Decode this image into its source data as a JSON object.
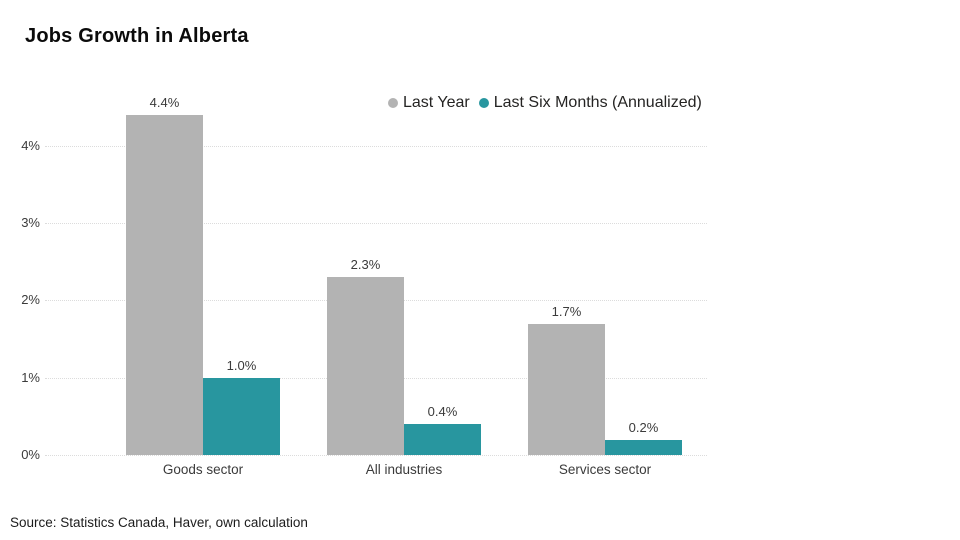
{
  "title": "Jobs Growth in Alberta",
  "source": "Source: Statistics Canada, Haver, own calculation",
  "colors": {
    "gray": "#b3b3b3",
    "teal": "#28969f",
    "grid": "#dcdcdc",
    "axis_text": "#3b3b3b",
    "legend_text": "#252423",
    "title_text": "#0b0b0b",
    "background": "#ffffff"
  },
  "chart_data": {
    "type": "bar",
    "title": "Jobs Growth in Alberta",
    "categories": [
      "Goods sector",
      "All industries",
      "Services sector"
    ],
    "series": [
      {
        "name": "Last Year",
        "color_key": "gray",
        "values": [
          4.4,
          2.3,
          1.7
        ],
        "labels": [
          "4.4%",
          "2.3%",
          "1.7%"
        ]
      },
      {
        "name": "Last Six Months (Annualized)",
        "color_key": "teal",
        "values": [
          1.0,
          0.4,
          0.2
        ],
        "labels": [
          "1.0%",
          "0.4%",
          "0.2%"
        ]
      }
    ],
    "xlabel": "",
    "ylabel": "",
    "ylim": [
      0,
      4.5
    ],
    "yticks": [
      0,
      1,
      2,
      3,
      4
    ],
    "ytick_labels": [
      "0%",
      "1%",
      "2%",
      "3%",
      "4%"
    ],
    "grid": true,
    "legend_position": "top"
  }
}
